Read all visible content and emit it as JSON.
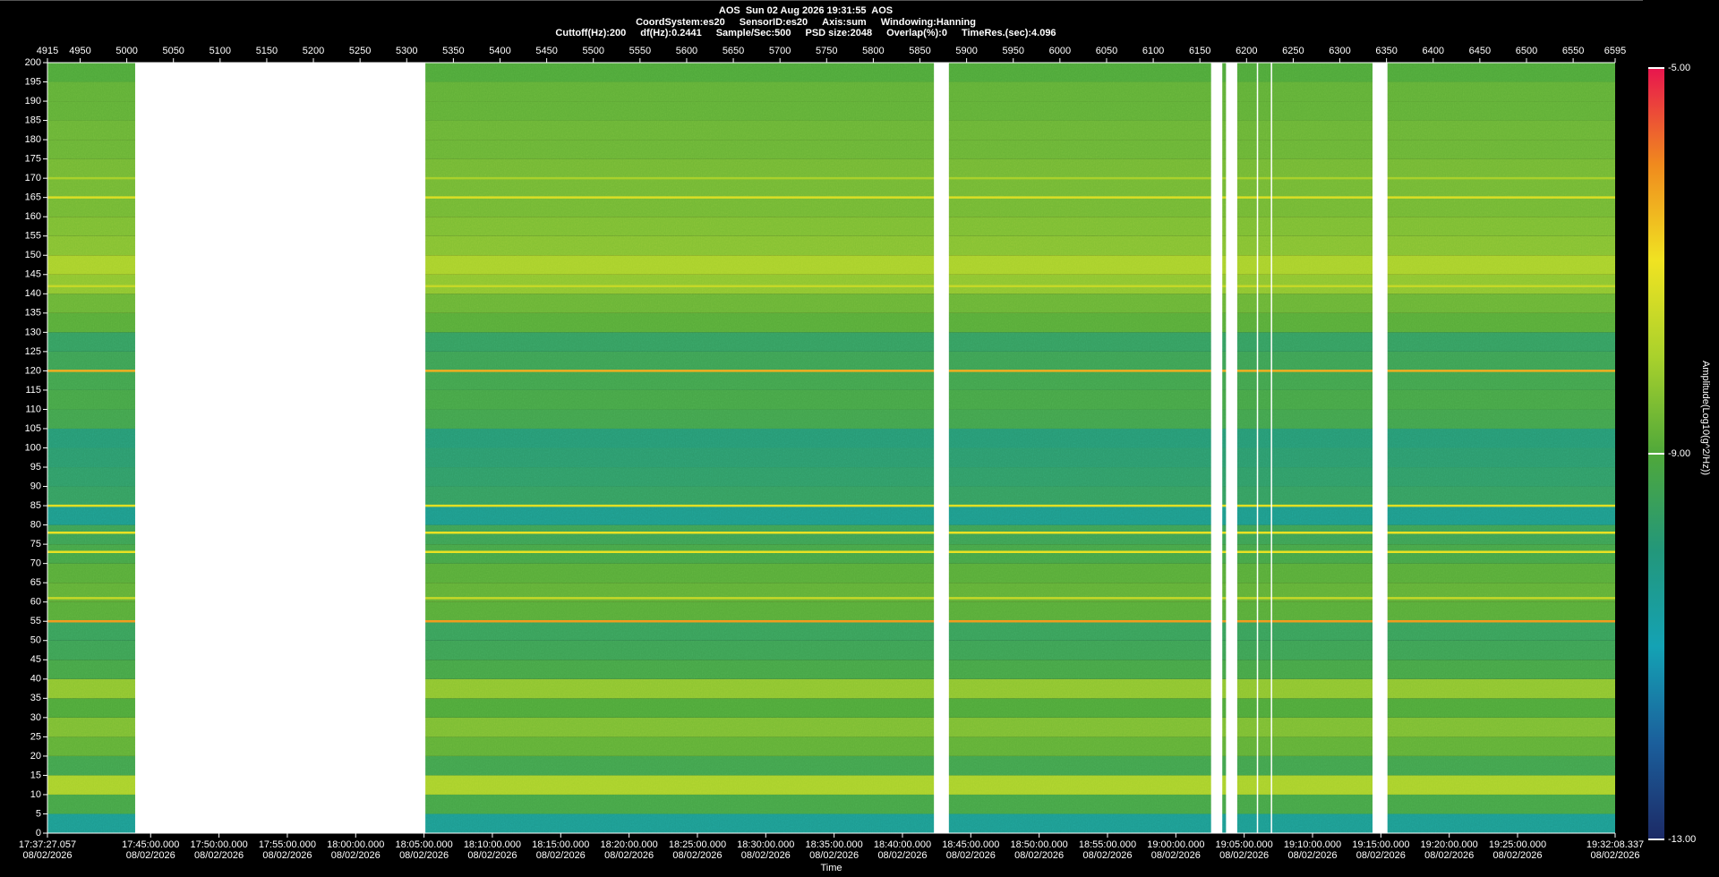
{
  "chart_data": {
    "type": "spectrogram",
    "title": "AOS  Sun 02 Aug 2026 19:31:55  AOS",
    "info_lines": [
      [
        "CoordSystem:es20",
        "SensorID:es20",
        "Axis:sum",
        "Windowing:Hanning"
      ],
      [
        "Cuttoff(Hz):200",
        "df(Hz):0.2441",
        "Sample/Sec:500",
        "PSD size:2048",
        "Overlap(%):0",
        "TimeRes.(sec):4.096"
      ]
    ],
    "xlabel": "Time",
    "xlim": [
      4915,
      6595
    ],
    "xticks": [
      4915,
      4950,
      5000,
      5050,
      5100,
      5150,
      5200,
      5250,
      5300,
      5350,
      5400,
      5450,
      5500,
      5550,
      5600,
      5650,
      5700,
      5750,
      5800,
      5850,
      5900,
      5950,
      6000,
      6050,
      6100,
      6150,
      6200,
      6250,
      6300,
      6350,
      6400,
      6450,
      6500,
      6550,
      6595
    ],
    "time_ticks": [
      {
        "value": 4915,
        "label": "17:37:27.057",
        "date": "08/02/2026"
      },
      {
        "value": 5025.58,
        "label": "17:45:00.000",
        "date": "08/02/2026"
      },
      {
        "value": 5098.82,
        "label": "17:50:00.000",
        "date": "08/02/2026"
      },
      {
        "value": 5172.07,
        "label": "17:55:00.000",
        "date": "08/02/2026"
      },
      {
        "value": 5245.31,
        "label": "18:00:00.000",
        "date": "08/02/2026"
      },
      {
        "value": 5318.55,
        "label": "18:05:00.000",
        "date": "08/02/2026"
      },
      {
        "value": 5391.79,
        "label": "18:10:00.000",
        "date": "08/02/2026"
      },
      {
        "value": 5465.04,
        "label": "18:15:00.000",
        "date": "08/02/2026"
      },
      {
        "value": 5538.28,
        "label": "18:20:00.000",
        "date": "08/02/2026"
      },
      {
        "value": 5611.52,
        "label": "18:25:00.000",
        "date": "08/02/2026"
      },
      {
        "value": 5684.76,
        "label": "18:30:00.000",
        "date": "08/02/2026"
      },
      {
        "value": 5758.01,
        "label": "18:35:00.000",
        "date": "08/02/2026"
      },
      {
        "value": 5831.25,
        "label": "18:40:00.000",
        "date": "08/02/2026"
      },
      {
        "value": 5904.49,
        "label": "18:45:00.000",
        "date": "08/02/2026"
      },
      {
        "value": 5977.73,
        "label": "18:50:00.000",
        "date": "08/02/2026"
      },
      {
        "value": 6050.98,
        "label": "18:55:00.000",
        "date": "08/02/2026"
      },
      {
        "value": 6124.22,
        "label": "19:00:00.000",
        "date": "08/02/2026"
      },
      {
        "value": 6197.46,
        "label": "19:05:00.000",
        "date": "08/02/2026"
      },
      {
        "value": 6270.7,
        "label": "19:10:00.000",
        "date": "08/02/2026"
      },
      {
        "value": 6343.95,
        "label": "19:15:00.000",
        "date": "08/02/2026"
      },
      {
        "value": 6417.19,
        "label": "19:20:00.000",
        "date": "08/02/2026"
      },
      {
        "value": 6490.43,
        "label": "19:25:00.000",
        "date": "08/02/2026"
      },
      {
        "value": 6595,
        "label": "19:32:08.337",
        "date": "08/02/2026"
      }
    ],
    "ylim": [
      0,
      200
    ],
    "yticks": [
      0,
      5,
      10,
      15,
      20,
      25,
      30,
      35,
      40,
      45,
      50,
      55,
      60,
      65,
      70,
      75,
      80,
      85,
      90,
      95,
      100,
      105,
      110,
      115,
      120,
      125,
      130,
      135,
      140,
      145,
      150,
      155,
      160,
      165,
      170,
      175,
      180,
      185,
      190,
      195,
      200
    ],
    "profile": {
      "freq": [
        0,
        5,
        10,
        15,
        20,
        25,
        30,
        35,
        40,
        45,
        50,
        55,
        60,
        65,
        70,
        75,
        80,
        85,
        90,
        95,
        100,
        105,
        110,
        115,
        120,
        125,
        130,
        135,
        140,
        145,
        150,
        155,
        160,
        165,
        170,
        175,
        180,
        185,
        190,
        195,
        200
      ],
      "amplitude": [
        -10.4,
        -9.2,
        -8.0,
        -9.3,
        -8.8,
        -8.5,
        -9.0,
        -8.3,
        -9.2,
        -9.4,
        -9.5,
        -8.9,
        -8.8,
        -8.9,
        -9.2,
        -9.4,
        -10.3,
        -9.6,
        -9.7,
        -9.8,
        -9.9,
        -9.3,
        -9.2,
        -9.3,
        -9.4,
        -9.6,
        -8.9,
        -8.7,
        -8.3,
        -8.0,
        -8.4,
        -8.5,
        -8.6,
        -8.6,
        -8.6,
        -8.7,
        -8.7,
        -8.8,
        -8.8,
        -9.0
      ]
    },
    "tones": {
      "freq": [
        170,
        165,
        142,
        120,
        85,
        78,
        73,
        61,
        55
      ],
      "amplitude": [
        -8.0,
        -7.3,
        -7.6,
        -6.4,
        -7.2,
        -7.1,
        -7.1,
        -7.6,
        -6.2
      ]
    },
    "gaps": [
      [
        5009,
        5320
      ],
      [
        5865,
        5881
      ],
      [
        6162,
        6174
      ],
      [
        6178,
        6190
      ],
      [
        6211,
        6212
      ],
      [
        6226,
        6227
      ],
      [
        6335,
        6351
      ]
    ],
    "colorbar": {
      "label": "Amplitude(Log10(g^2/Hz))",
      "lim": [
        -13,
        -5
      ],
      "ticks": [
        {
          "value": -5,
          "label": "-5.00"
        },
        {
          "value": -9,
          "label": "-9.00"
        },
        {
          "value": -13,
          "label": "-13.00"
        }
      ],
      "colorscale": [
        {
          "value": -13,
          "color": "#1c2a66"
        },
        {
          "value": -12,
          "color": "#1b5f9c"
        },
        {
          "value": -11,
          "color": "#14a2b4"
        },
        {
          "value": -10,
          "color": "#23977a"
        },
        {
          "value": -9,
          "color": "#4fa83a"
        },
        {
          "value": -8,
          "color": "#a9d12c"
        },
        {
          "value": -7,
          "color": "#f0e322"
        },
        {
          "value": -6,
          "color": "#f08a1e"
        },
        {
          "value": -5,
          "color": "#e8154e"
        }
      ]
    }
  }
}
